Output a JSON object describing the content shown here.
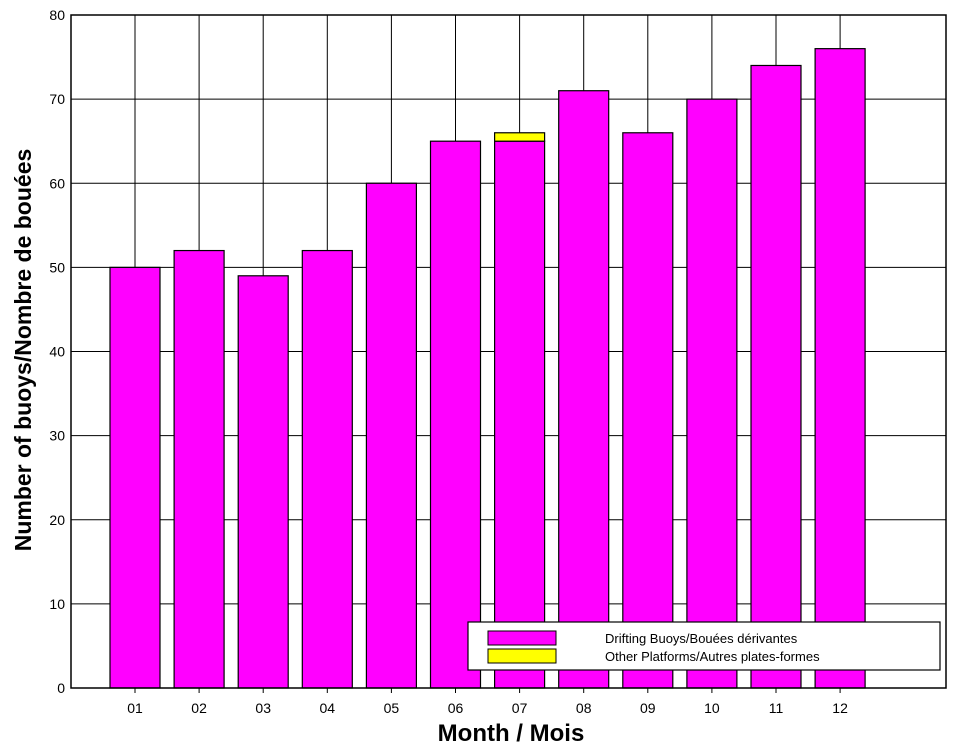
{
  "chart_data": {
    "type": "bar",
    "stacked": true,
    "categories": [
      "01",
      "02",
      "03",
      "04",
      "05",
      "06",
      "07",
      "08",
      "09",
      "10",
      "11",
      "12"
    ],
    "series": [
      {
        "name": "Drifting Buoys/Bouées dérivantes",
        "values": [
          50,
          52,
          49,
          52,
          60,
          65,
          65,
          71,
          66,
          70,
          74,
          76
        ],
        "color": "#ff00ff"
      },
      {
        "name": "Other Platforms/Autres plates-formes",
        "values": [
          0,
          0,
          0,
          0,
          0,
          0,
          1,
          0,
          0,
          0,
          0,
          0
        ],
        "color": "#ffff00"
      }
    ],
    "title": "",
    "xlabel": "Month / Mois",
    "ylabel": "Number of buoys/Nombre de bouées",
    "ylim": [
      0,
      80
    ],
    "yticks": [
      0,
      10,
      20,
      30,
      40,
      50,
      60,
      70,
      80
    ],
    "grid": true,
    "legend_position": "bottom-right"
  }
}
